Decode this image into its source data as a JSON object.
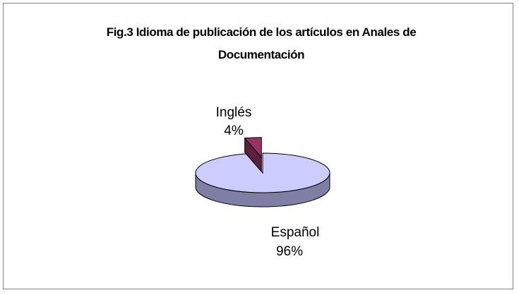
{
  "chart_data": {
    "type": "pie",
    "title": "Fig.3 Idioma de publicación de los artículos en Anales de Documentación",
    "categories": [
      "Español",
      "Inglés"
    ],
    "values": [
      96,
      4
    ],
    "value_labels": [
      "96%",
      "4%"
    ],
    "colors": [
      "#ccccff",
      "#993366"
    ],
    "side_colors": [
      "#7f7fa6",
      "#5c1f3d"
    ],
    "exploded": [
      false,
      true
    ]
  }
}
